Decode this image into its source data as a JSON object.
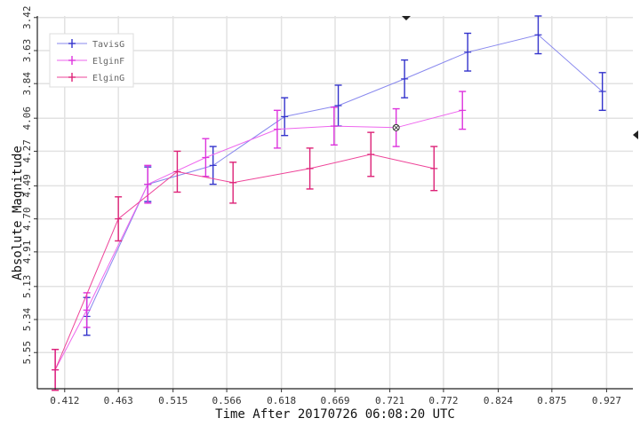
{
  "chart_data": {
    "type": "line",
    "xlabel": "Time After 20170726 06:08:20 UTC",
    "ylabel": "Absolute Magnitude",
    "x_ticks": [
      "0.412",
      "0.463",
      "0.515",
      "0.566",
      "0.618",
      "0.669",
      "0.721",
      "0.772",
      "0.824",
      "0.875",
      "0.927"
    ],
    "y_ticks": [
      "3.42",
      "3.63",
      "3.84",
      "4.06",
      "4.27",
      "4.49",
      "4.70",
      "4.91",
      "5.13",
      "5.34",
      "5.55"
    ],
    "xlim": [
      0.386,
      0.952
    ],
    "ylim": [
      3.41,
      5.78
    ],
    "y_inverted": true,
    "grid": true,
    "legend_position": "top-left",
    "series": [
      {
        "name": "TavisG",
        "color": "#3333cc",
        "line_color": "#8888ee",
        "x": [
          0.433,
          0.491,
          0.553,
          0.621,
          0.672,
          0.735,
          0.795,
          0.862,
          0.923
        ],
        "y": [
          5.32,
          4.48,
          4.36,
          4.05,
          3.98,
          3.81,
          3.64,
          3.53,
          3.89
        ],
        "err": [
          0.12,
          0.11,
          0.12,
          0.12,
          0.13,
          0.12,
          0.12,
          0.12,
          0.12
        ]
      },
      {
        "name": "ElginF",
        "color": "#dd33dd",
        "line_color": "#ee66ee",
        "x": [
          0.403,
          0.433,
          0.491,
          0.546,
          0.614,
          0.668,
          0.727,
          0.79
        ],
        "y": [
          5.66,
          5.28,
          4.48,
          4.31,
          4.13,
          4.11,
          4.12,
          4.01
        ],
        "err": [
          0.13,
          0.11,
          0.12,
          0.12,
          0.12,
          0.12,
          0.12,
          0.12
        ]
      },
      {
        "name": "ElginG",
        "color": "#dd2277",
        "line_color": "#ee4499",
        "x": [
          0.403,
          0.463,
          0.519,
          0.572,
          0.645,
          0.703,
          0.763
        ],
        "y": [
          5.66,
          4.7,
          4.4,
          4.47,
          4.38,
          4.29,
          4.38
        ],
        "err": [
          0.13,
          0.14,
          0.13,
          0.13,
          0.13,
          0.14,
          0.14
        ]
      }
    ]
  }
}
